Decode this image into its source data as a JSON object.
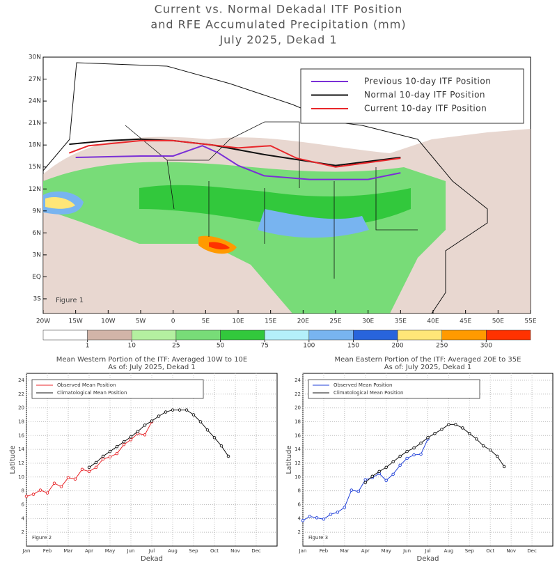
{
  "chart_data": [
    {
      "type": "map",
      "title": [
        "Current vs. Normal Dekadal ITF Position",
        "and RFE Accumulated Precipitation (mm)",
        "July 2025, Dekad 1"
      ],
      "annotation": "Figure 1",
      "xlim": [
        -20,
        55
      ],
      "ylim": [
        -5,
        30
      ],
      "xticks": [
        {
          "value": -20,
          "label": "20W"
        },
        {
          "value": -15,
          "label": "15W"
        },
        {
          "value": -10,
          "label": "10W"
        },
        {
          "value": -5,
          "label": "5W"
        },
        0,
        {
          "value": 5,
          "label": "5E"
        },
        {
          "value": 10,
          "label": "10E"
        },
        {
          "value": 15,
          "label": "15E"
        },
        {
          "value": 20,
          "label": "20E"
        },
        {
          "value": 25,
          "label": "25E"
        },
        {
          "value": 30,
          "label": "30E"
        },
        {
          "value": 35,
          "label": "35E"
        },
        {
          "value": 40,
          "label": "40E"
        },
        {
          "value": 45,
          "label": "45E"
        },
        {
          "value": 50,
          "label": "50E"
        },
        {
          "value": 55,
          "label": "55E"
        }
      ],
      "yticks": [
        {
          "value": -3,
          "label": "3S"
        },
        {
          "value": 0,
          "label": "EQ"
        },
        {
          "value": 3,
          "label": "3N"
        },
        {
          "value": 6,
          "label": "6N"
        },
        {
          "value": 9,
          "label": "9N"
        },
        {
          "value": 12,
          "label": "12N"
        },
        {
          "value": 15,
          "label": "15N"
        },
        {
          "value": 18,
          "label": "18N"
        },
        {
          "value": 21,
          "label": "21N"
        },
        {
          "value": 24,
          "label": "24N"
        },
        {
          "value": 27,
          "label": "27N"
        },
        {
          "value": 30,
          "label": "30N"
        }
      ],
      "series": [
        {
          "name": "Previous 10-day ITF Position",
          "color": "#7a2fd6",
          "x": [
            -15,
            -10,
            -5,
            0,
            4.5,
            7,
            10,
            14,
            21,
            30,
            35
          ],
          "values": [
            16.3,
            16.4,
            16.5,
            16.5,
            17.9,
            16.9,
            15.2,
            13.8,
            13.3,
            13.3,
            14.2
          ]
        },
        {
          "name": "Normal 10-day ITF Position",
          "color": "#111111",
          "x": [
            -16,
            -10,
            -5,
            0,
            6,
            14,
            25,
            35
          ],
          "values": [
            18.1,
            18.6,
            18.8,
            18.6,
            18.0,
            16.7,
            15.2,
            16.3
          ]
        },
        {
          "name": "Current 10-day ITF Position",
          "color": "#e8262a",
          "x": [
            -16,
            -13,
            -5,
            0,
            5,
            10,
            15,
            19,
            25,
            35
          ],
          "values": [
            16.9,
            17.9,
            18.6,
            18.6,
            18.1,
            17.6,
            17.9,
            16.2,
            15.0,
            16.2
          ]
        }
      ],
      "colorbar": {
        "ticks": [
          1,
          10,
          25,
          50,
          75,
          100,
          150,
          200,
          250,
          300
        ],
        "colors": [
          "#ffffff",
          "#d2b4a8",
          "#b4f0a0",
          "#78dc78",
          "#32c83c",
          "#b4f0fa",
          "#78b4f0",
          "#2864dc",
          "#ffe678",
          "#ff9a00",
          "#ff3200"
        ]
      }
    },
    {
      "type": "line",
      "title": [
        "Mean Western Portion of the ITF: Averaged 10W to 10E",
        "As of: July 2025, Dekad 1"
      ],
      "xlabel": "Dekad",
      "ylabel": "Latitude",
      "annotation": "Figure 2",
      "xlim": [
        1,
        37
      ],
      "ylim": [
        0,
        25
      ],
      "grid": true,
      "xticks": [
        {
          "value": 1,
          "label": "Jan"
        },
        {
          "value": 4,
          "label": "Feb"
        },
        {
          "value": 7,
          "label": "Mar"
        },
        {
          "value": 10,
          "label": "Apr"
        },
        {
          "value": 13,
          "label": "May"
        },
        {
          "value": 16,
          "label": "Jun"
        },
        {
          "value": 19,
          "label": "Jul"
        },
        {
          "value": 22,
          "label": "Aug"
        },
        {
          "value": 25,
          "label": "Sep"
        },
        {
          "value": 28,
          "label": "Oct"
        },
        {
          "value": 31,
          "label": "Nov"
        },
        {
          "value": 34,
          "label": "Dec"
        }
      ],
      "yticks": [
        2,
        4,
        6,
        8,
        10,
        12,
        14,
        16,
        18,
        20,
        22,
        24
      ],
      "x": [
        1,
        2,
        3,
        4,
        5,
        6,
        7,
        8,
        9,
        10,
        11,
        12,
        13,
        14,
        15,
        16,
        17,
        18,
        19,
        20,
        21,
        22,
        23,
        24,
        25,
        26,
        27,
        28,
        29,
        30
      ],
      "series": [
        {
          "name": "Observed Mean Position",
          "color": "#e8262a",
          "values": [
            7.2,
            7.5,
            8.1,
            7.7,
            9.1,
            8.6,
            9.9,
            9.7,
            11.1,
            10.8,
            11.4,
            12.6,
            12.9,
            13.4,
            14.7,
            15.4,
            16.3,
            16.1,
            18.0,
            null,
            null,
            null,
            null,
            null,
            null,
            null,
            null,
            null,
            null,
            null
          ]
        },
        {
          "name": "Climatological Mean Position",
          "color": "#111111",
          "values": [
            null,
            null,
            null,
            null,
            null,
            null,
            null,
            null,
            null,
            11.4,
            12.1,
            13.0,
            13.7,
            14.4,
            15.1,
            15.8,
            16.6,
            17.5,
            18.1,
            18.8,
            19.4,
            19.7,
            19.7,
            19.7,
            19.0,
            18.0,
            16.8,
            15.7,
            14.5,
            13.0
          ]
        }
      ]
    },
    {
      "type": "line",
      "title": [
        "Mean Eastern Portion of the ITF: Averaged 20E to 35E",
        "As of: July 2025, Dekad 1"
      ],
      "xlabel": "Dekad",
      "ylabel": "Latitude",
      "annotation": "Figure 3",
      "xlim": [
        1,
        37
      ],
      "ylim": [
        0,
        25
      ],
      "grid": true,
      "xticks": [
        {
          "value": 1,
          "label": "Jan"
        },
        {
          "value": 4,
          "label": "Feb"
        },
        {
          "value": 7,
          "label": "Mar"
        },
        {
          "value": 10,
          "label": "Apr"
        },
        {
          "value": 13,
          "label": "May"
        },
        {
          "value": 16,
          "label": "Jun"
        },
        {
          "value": 19,
          "label": "Jul"
        },
        {
          "value": 22,
          "label": "Aug"
        },
        {
          "value": 25,
          "label": "Sep"
        },
        {
          "value": 28,
          "label": "Oct"
        },
        {
          "value": 31,
          "label": "Nov"
        },
        {
          "value": 34,
          "label": "Dec"
        }
      ],
      "yticks": [
        2,
        4,
        6,
        8,
        10,
        12,
        14,
        16,
        18,
        20,
        22,
        24
      ],
      "x": [
        1,
        2,
        3,
        4,
        5,
        6,
        7,
        8,
        9,
        10,
        11,
        12,
        13,
        14,
        15,
        16,
        17,
        18,
        19,
        20,
        21,
        22,
        23,
        24,
        25,
        26,
        27,
        28,
        29,
        30
      ],
      "series": [
        {
          "name": "Observed Mean Position",
          "color": "#1f3fd8",
          "values": [
            3.7,
            4.3,
            4.1,
            3.9,
            4.6,
            4.9,
            5.6,
            8.1,
            7.9,
            9.6,
            9.9,
            10.5,
            9.5,
            10.4,
            11.7,
            12.7,
            13.2,
            13.3,
            15.5,
            null,
            null,
            null,
            null,
            null,
            null,
            null,
            null,
            null,
            null,
            null
          ]
        },
        {
          "name": "Climatological Mean Position",
          "color": "#111111",
          "values": [
            null,
            null,
            null,
            null,
            null,
            null,
            null,
            null,
            null,
            9.2,
            10.1,
            10.8,
            11.4,
            12.2,
            13.0,
            13.7,
            14.2,
            14.9,
            15.7,
            16.3,
            16.9,
            17.6,
            17.6,
            17.1,
            16.3,
            15.5,
            14.5,
            13.9,
            13.0,
            11.5
          ]
        }
      ]
    }
  ]
}
